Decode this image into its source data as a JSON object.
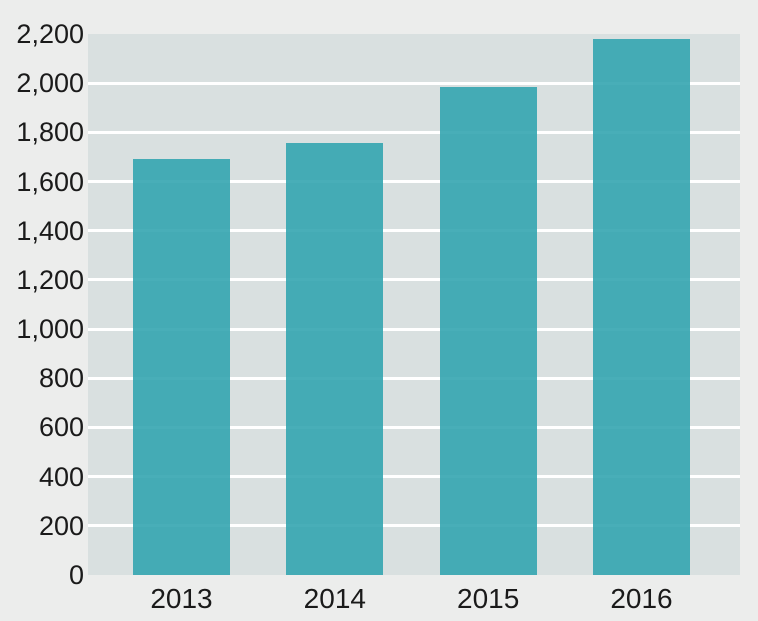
{
  "chart_data": {
    "type": "bar",
    "title": "",
    "xlabel": "",
    "ylabel": "",
    "categories": [
      "2013",
      "2014",
      "2015",
      "2016"
    ],
    "values": [
      1690,
      1755,
      1985,
      2180
    ],
    "ylim": [
      0,
      2200
    ],
    "yticks": [
      0,
      200,
      400,
      600,
      800,
      1000,
      1200,
      1400,
      1600,
      1800,
      2000,
      2200
    ],
    "ytick_labels": [
      "0",
      "200",
      "400",
      "600",
      "800",
      "1,000",
      "1,200",
      "1,400",
      "1,600",
      "1,800",
      "2,000",
      "2,200"
    ],
    "grid": true,
    "legend_position": "none",
    "colors": {
      "bar": "#2FA3AE",
      "bar_alpha": 0.88,
      "plot_background": "#D9E0E0",
      "outer_background": "#ECEDEC",
      "gridline": "#FFFFFF",
      "label_text": "#1A1A1A"
    }
  }
}
